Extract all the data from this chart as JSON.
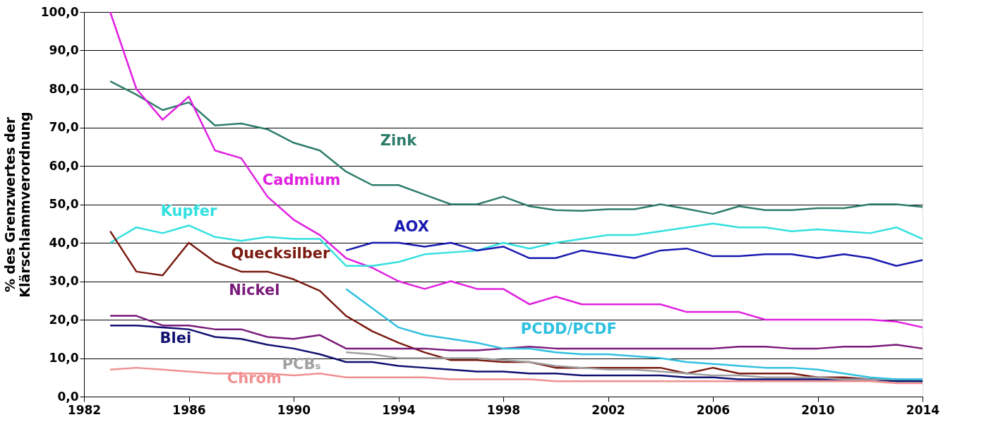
{
  "chart_data": {
    "type": "line",
    "ylabel": "% des Grenzwertes der\nKlärschlammverordnung",
    "x": [
      1983,
      1984,
      1985,
      1986,
      1987,
      1988,
      1989,
      1990,
      1991,
      1992,
      1993,
      1994,
      1995,
      1996,
      1997,
      1998,
      1999,
      2000,
      2001,
      2002,
      2003,
      2004,
      2005,
      2006,
      2007,
      2008,
      2009,
      2010,
      2011,
      2012,
      2013,
      2014
    ],
    "series": [
      {
        "name": "Zink",
        "color": "#2e7d6b",
        "values": [
          82,
          78.5,
          74.5,
          76.5,
          70.5,
          71,
          69.5,
          66,
          64,
          58.5,
          55,
          55,
          52.5,
          50,
          50,
          52,
          49.5,
          48.5,
          48.3,
          48.7,
          48.7,
          50,
          48.8,
          47.5,
          49.5,
          48.5,
          48.5,
          49,
          49,
          50,
          50,
          49.3
        ]
      },
      {
        "name": "Cadmium",
        "color": "#e020e0",
        "values": [
          100,
          80,
          72,
          78,
          64,
          62,
          52,
          46,
          42,
          36,
          33.5,
          30,
          28,
          30,
          28,
          28,
          24,
          26,
          24,
          24,
          24,
          24,
          22,
          22,
          22,
          20,
          20,
          20,
          20,
          20,
          19.5,
          18
        ]
      },
      {
        "name": "Kupfer",
        "color": "#33e0e0",
        "values": [
          40,
          44,
          42.5,
          44.5,
          41.5,
          40.5,
          41.5,
          41,
          41,
          34,
          34,
          35,
          37,
          37.5,
          38,
          40,
          38.5,
          40,
          41,
          42,
          42,
          43,
          44,
          45,
          44,
          44,
          43,
          43.5,
          43,
          42.5,
          44,
          41
        ]
      },
      {
        "name": "AOX",
        "color": "#1a1ab0",
        "values": [
          null,
          null,
          null,
          null,
          null,
          null,
          null,
          null,
          null,
          38,
          40,
          40,
          39,
          40,
          38,
          39,
          36,
          36,
          38,
          37,
          36,
          38,
          38.5,
          36.5,
          36.5,
          37,
          37,
          36,
          37,
          36,
          34,
          35.5
        ]
      },
      {
        "name": "Quecksilber",
        "color": "#7a1a10",
        "values": [
          43,
          32.5,
          31.5,
          40,
          35,
          32.5,
          32.5,
          30.5,
          27.5,
          21,
          17,
          14,
          11.5,
          9.5,
          9.5,
          9,
          9,
          7.5,
          7.5,
          7.5,
          7.5,
          7.5,
          6,
          7.5,
          6,
          6,
          6,
          5,
          5,
          4.5,
          4.5,
          4
        ]
      },
      {
        "name": "Nickel",
        "color": "#7a1a7a",
        "values": [
          21,
          21,
          18.5,
          18.5,
          17.5,
          17.5,
          15.5,
          15,
          16,
          12.5,
          12.5,
          12.5,
          12.5,
          12,
          12,
          12.5,
          13,
          12.5,
          12.5,
          12.5,
          12.5,
          12.5,
          12.5,
          12.5,
          13,
          13,
          12.5,
          12.5,
          13,
          13,
          13.5,
          12.5
        ]
      },
      {
        "name": "Blei",
        "color": "#101070",
        "values": [
          18.5,
          18.5,
          18,
          17.5,
          15.5,
          15,
          13.5,
          12.5,
          11,
          9,
          9,
          8,
          7.5,
          7,
          6.5,
          6.5,
          6,
          6,
          5.5,
          5.5,
          5.5,
          5.5,
          5,
          5,
          4.5,
          4.5,
          4.5,
          4.5,
          4.5,
          4.5,
          4,
          4
        ]
      },
      {
        "name": "Chrom",
        "color": "#f09090",
        "values": [
          7,
          7.5,
          7,
          6.5,
          6,
          6,
          6,
          5.5,
          6,
          5,
          5,
          5,
          5,
          4.5,
          4.5,
          4.5,
          4.5,
          4,
          4,
          4,
          4,
          4,
          4,
          4,
          4,
          4,
          4,
          4,
          4,
          4,
          3.5,
          3.5
        ]
      },
      {
        "name": "PCBₛ",
        "color": "#a0a0a0",
        "values": [
          null,
          null,
          null,
          null,
          null,
          null,
          null,
          null,
          null,
          11.5,
          11,
          10,
          10,
          10,
          10,
          9.5,
          9,
          8,
          7.5,
          7,
          7,
          6.5,
          6,
          5.5,
          5.5,
          5,
          5,
          5,
          4.5,
          4.5,
          4.5,
          4.5
        ]
      },
      {
        "name": "PCDD/PCDF",
        "color": "#30c0e0",
        "values": [
          null,
          null,
          null,
          null,
          null,
          null,
          null,
          null,
          null,
          28,
          23,
          18,
          16,
          15,
          14,
          12.5,
          12.5,
          11.5,
          11,
          11,
          10.5,
          10,
          9,
          8.5,
          8,
          7.5,
          7.5,
          7,
          6,
          5,
          4.5,
          4.5
        ]
      }
    ],
    "xlim": [
      1982,
      2014
    ],
    "xticks": [
      1982,
      1986,
      1990,
      1994,
      1998,
      2002,
      2006,
      2010,
      2014
    ],
    "ylim": [
      0,
      100
    ],
    "yticks": [
      {
        "value": 0,
        "label": "0,0"
      },
      {
        "value": 10,
        "label": "10,0"
      },
      {
        "value": 20,
        "label": "20,0"
      },
      {
        "value": 30,
        "label": "30,0"
      },
      {
        "value": 40,
        "label": "40,0"
      },
      {
        "value": 50,
        "label": "50,0"
      },
      {
        "value": 60,
        "label": "60,0"
      },
      {
        "value": 70,
        "label": "70,0"
      },
      {
        "value": 80,
        "label": "80,0"
      },
      {
        "value": 90,
        "label": "90,0"
      },
      {
        "value": 100,
        "label": "100,0"
      }
    ],
    "grid": "y",
    "legend": false,
    "marker": "none",
    "line_style": "solid"
  }
}
